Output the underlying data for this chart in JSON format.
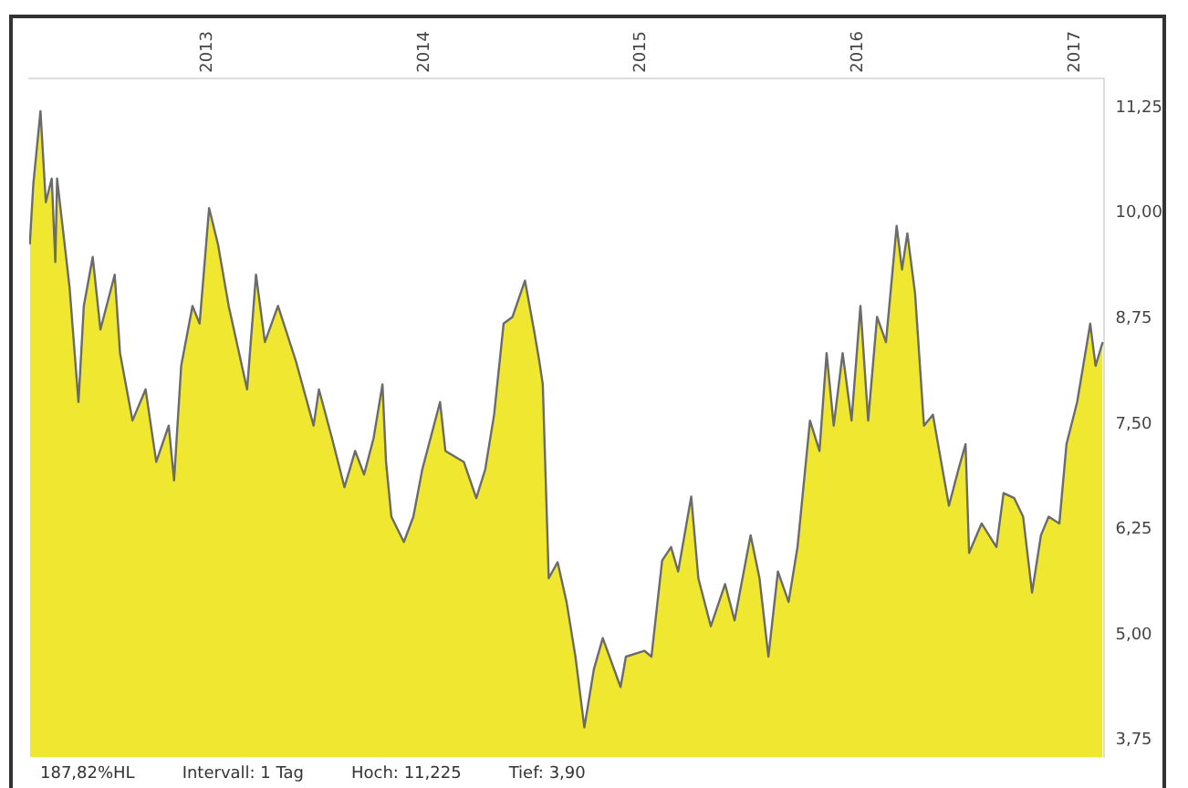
{
  "chart_data": {
    "type": "area",
    "x": [
      "2012-03-08",
      "2012-03-14",
      "2012-03-26",
      "2012-04-04",
      "2012-04-14",
      "2012-04-20",
      "2012-04-23",
      "2012-05-14",
      "2012-05-29",
      "2012-06-07",
      "2012-06-22",
      "2012-07-05",
      "2012-07-29",
      "2012-08-07",
      "2012-08-28",
      "2012-09-19",
      "2012-10-07",
      "2012-10-28",
      "2012-11-06",
      "2012-11-18",
      "2012-12-07",
      "2012-12-19",
      "2013-01-04",
      "2013-01-19",
      "2013-02-06",
      "2013-03-09",
      "2013-03-24",
      "2013-04-08",
      "2013-04-30",
      "2013-05-30",
      "2013-06-29",
      "2013-07-08",
      "2013-07-30",
      "2013-08-20",
      "2013-09-07",
      "2013-09-22",
      "2013-10-08",
      "2013-10-23",
      "2013-10-29",
      "2013-11-07",
      "2013-11-28",
      "2013-12-14",
      "2013-12-29",
      "2014-01-28",
      "2014-02-06",
      "2014-03-09",
      "2014-03-30",
      "2014-04-14",
      "2014-04-29",
      "2014-05-15",
      "2014-05-30",
      "2014-06-20",
      "2014-07-05",
      "2014-07-14",
      "2014-07-20",
      "2014-07-30",
      "2014-08-14",
      "2014-08-29",
      "2014-09-13",
      "2014-09-28",
      "2014-10-14",
      "2014-10-29",
      "2014-11-28",
      "2014-12-07",
      "2015-01-07",
      "2015-01-19",
      "2015-02-06",
      "2015-02-21",
      "2015-03-05",
      "2015-03-27",
      "2015-04-08",
      "2015-04-29",
      "2015-05-23",
      "2015-06-08",
      "2015-07-05",
      "2015-07-20",
      "2015-08-04",
      "2015-08-20",
      "2015-09-07",
      "2015-09-22",
      "2015-10-13",
      "2015-10-29",
      "2015-11-10",
      "2015-11-22",
      "2015-12-07",
      "2015-12-22",
      "2016-01-06",
      "2016-01-19",
      "2016-02-03",
      "2016-02-18",
      "2016-03-07",
      "2016-03-16",
      "2016-03-25",
      "2016-04-07",
      "2016-04-22",
      "2016-05-07",
      "2016-06-03",
      "2016-06-19",
      "2016-07-01",
      "2016-07-07",
      "2016-07-28",
      "2016-08-22",
      "2016-09-03",
      "2016-09-21",
      "2016-10-06",
      "2016-10-21",
      "2016-11-05",
      "2016-11-18",
      "2016-12-06",
      "2016-12-18",
      "2017-01-05",
      "2017-01-27",
      "2017-02-05",
      "2017-02-17"
    ],
    "series": [
      {
        "color": "#f0e830",
        "values": [
          9.63,
          10.35,
          11.21,
          10.13,
          10.41,
          9.42,
          10.41,
          9.12,
          7.76,
          8.9,
          9.48,
          8.62,
          9.27,
          8.34,
          7.54,
          7.91,
          7.05,
          7.48,
          6.83,
          8.19,
          8.9,
          8.69,
          10.06,
          9.63,
          8.9,
          7.91,
          9.27,
          8.47,
          8.9,
          8.25,
          7.48,
          7.91,
          7.33,
          6.75,
          7.18,
          6.9,
          7.33,
          7.97,
          7.05,
          6.4,
          6.1,
          6.4,
          6.96,
          7.76,
          7.18,
          7.05,
          6.62,
          6.96,
          7.61,
          8.69,
          8.77,
          9.2,
          8.62,
          8.25,
          7.97,
          5.67,
          5.86,
          5.39,
          4.74,
          3.9,
          4.59,
          4.96,
          4.38,
          4.74,
          4.81,
          4.74,
          5.88,
          6.04,
          5.75,
          6.64,
          5.67,
          5.1,
          5.6,
          5.17,
          6.18,
          5.67,
          4.74,
          5.75,
          5.39,
          6.04,
          7.54,
          7.18,
          8.34,
          7.48,
          8.34,
          7.54,
          8.9,
          7.54,
          8.77,
          8.47,
          9.85,
          9.33,
          9.76,
          9.05,
          7.48,
          7.61,
          6.53,
          6.96,
          7.26,
          5.97,
          6.32,
          6.04,
          6.68,
          6.62,
          6.4,
          5.5,
          6.18,
          6.4,
          6.32,
          7.26,
          7.76,
          8.69,
          8.19,
          8.47
        ]
      }
    ],
    "xlim": [
      "2012-03-07",
      "2017-02-20"
    ],
    "xticks": [
      {
        "value": "2013-01-01",
        "label": "2013"
      },
      {
        "value": "2014-01-01",
        "label": "2014"
      },
      {
        "value": "2015-01-01",
        "label": "2015"
      },
      {
        "value": "2016-01-01",
        "label": "2016"
      },
      {
        "value": "2017-01-01",
        "label": "2017"
      }
    ],
    "ylim": [
      3.55,
      11.6
    ],
    "yticks": [
      {
        "value": 3.75,
        "label": "3,75"
      },
      {
        "value": 5,
        "label": "5,00"
      },
      {
        "value": 6.25,
        "label": "6,25"
      },
      {
        "value": 7.5,
        "label": "7,50"
      },
      {
        "value": 8.75,
        "label": "8,75"
      },
      {
        "value": 10,
        "label": "10,00"
      },
      {
        "value": 11.25,
        "label": "11,25"
      }
    ],
    "grid": false,
    "legend": false,
    "marker": "none",
    "line_style": "solid",
    "annotations": [
      "187,82%HL",
      "Intervall: 1 Tag",
      "Hoch: 11,225",
      "Tief: 3,90"
    ]
  }
}
